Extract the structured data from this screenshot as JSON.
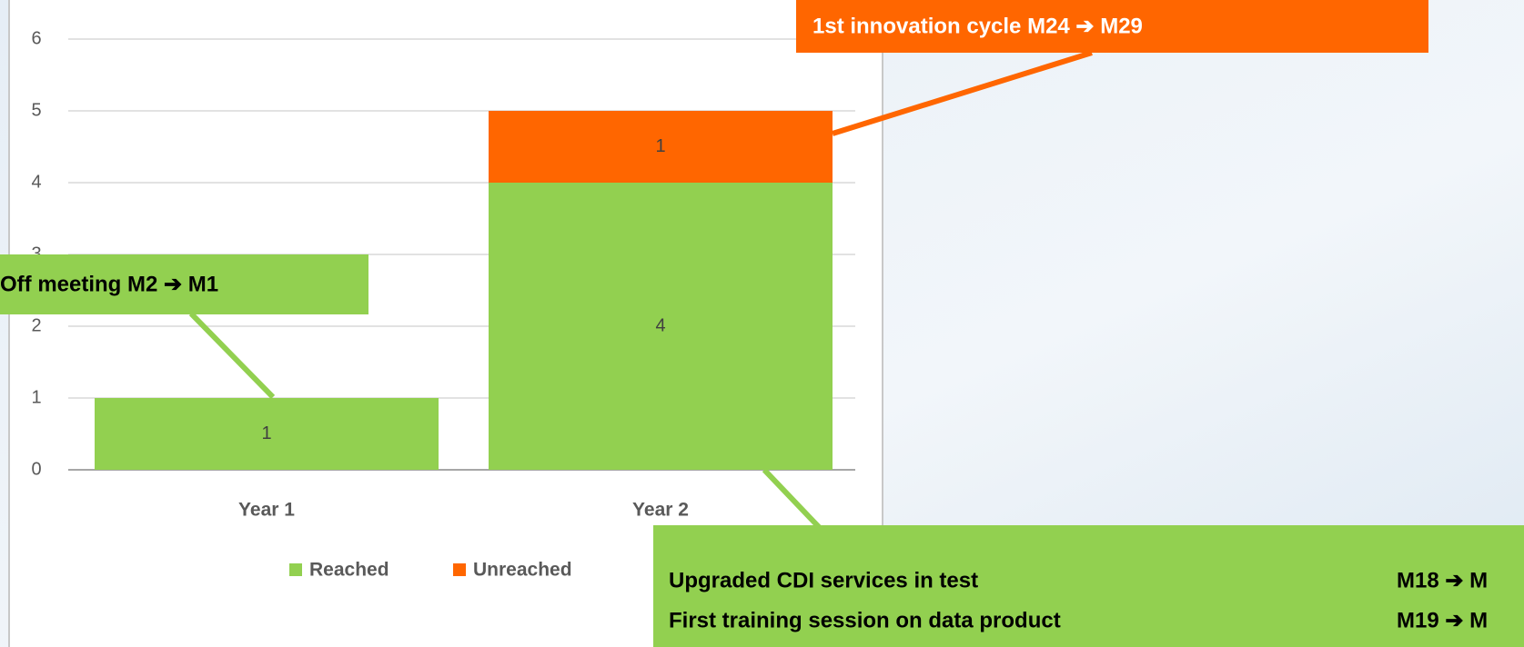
{
  "chart_data": {
    "type": "stacked_bar",
    "categories": [
      "Year 1",
      "Year 2"
    ],
    "series": [
      {
        "name": "Reached",
        "color": "#92d050",
        "values": [
          1,
          4
        ]
      },
      {
        "name": "Unreached",
        "color": "#ff6600",
        "values": [
          0,
          1
        ]
      }
    ],
    "ylim": [
      0,
      6
    ],
    "yticks": [
      0,
      1,
      2,
      3,
      4,
      5,
      6
    ],
    "grid": true,
    "legend": "bottom",
    "annotations": [
      {
        "text": "1st innovation cycle M24 ➔ M29",
        "color": "#ff6600"
      },
      {
        "text": "Off meeting M2 ➔ M1",
        "color": "#92d050"
      }
    ],
    "milestones": [
      {
        "name": "Upgraded CDI services in test",
        "period": "M18 ➔ M"
      },
      {
        "name": "First training session on data product",
        "period": "M19 ➔ M"
      }
    ]
  }
}
